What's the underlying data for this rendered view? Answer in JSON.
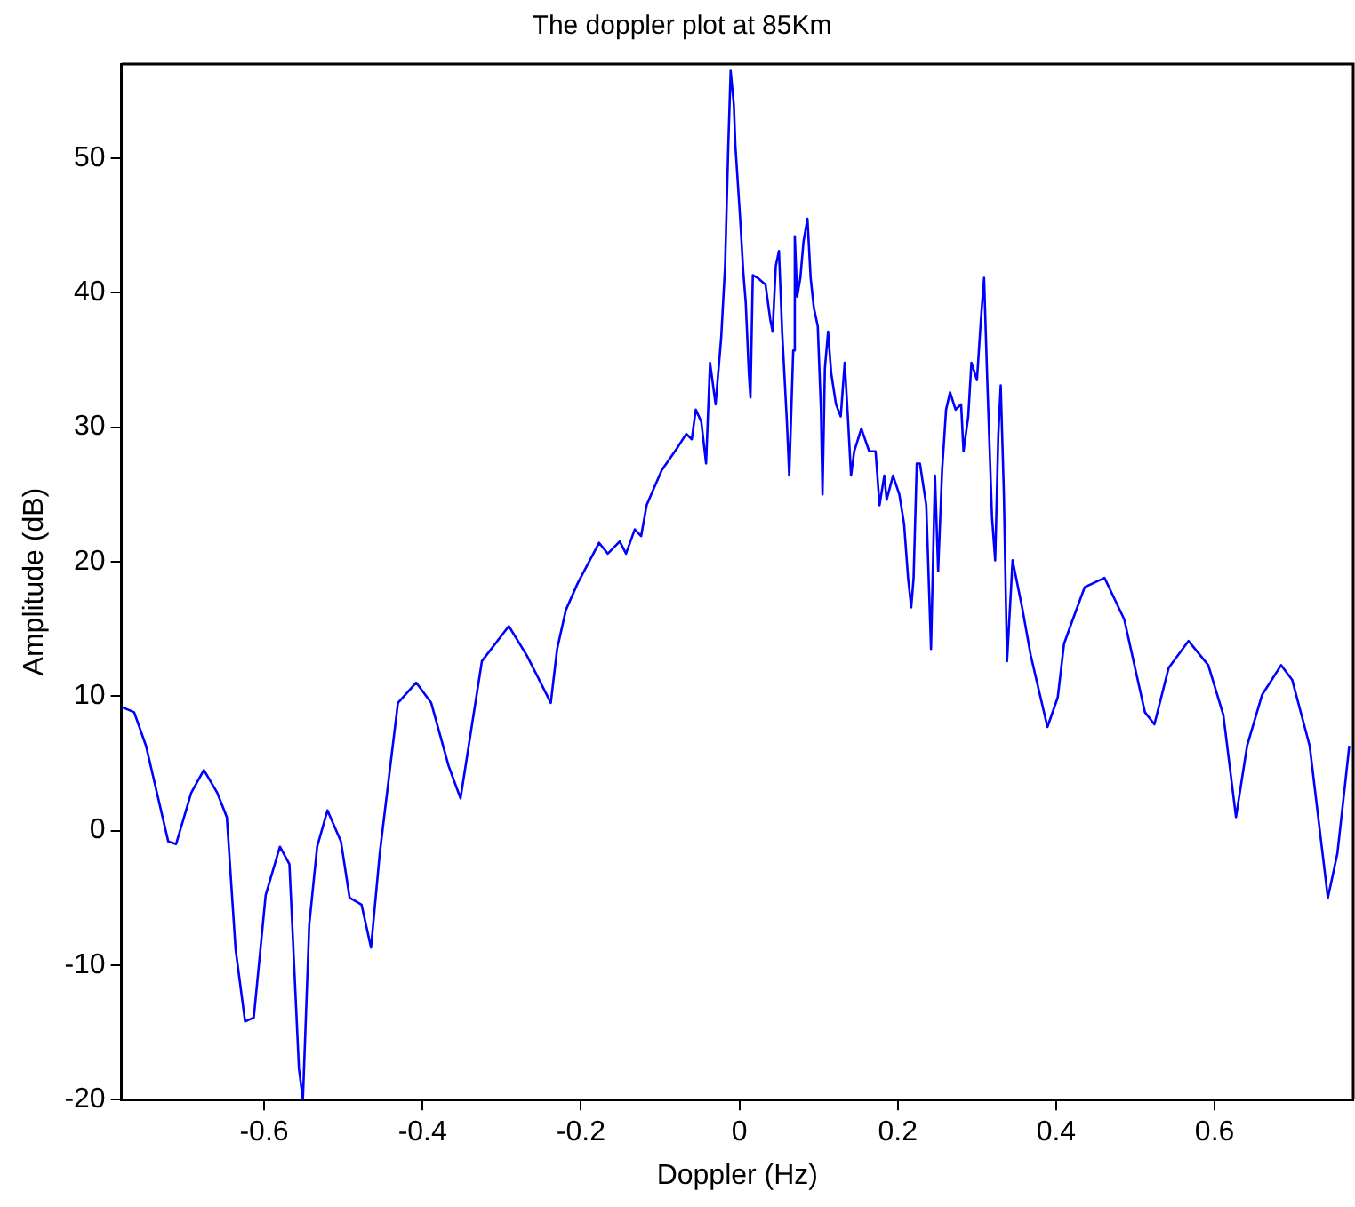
{
  "chart_data": {
    "type": "line",
    "title": "The doppler plot at 85Km",
    "xlabel": "Doppler (Hz)",
    "ylabel": "Amplitude (dB)",
    "xlim": [
      -0.78,
      0.775
    ],
    "ylim": [
      -20,
      57
    ],
    "xticks": [
      -0.6,
      -0.4,
      -0.2,
      0,
      0.2,
      0.4,
      0.6
    ],
    "yticks": [
      -20,
      -10,
      0,
      10,
      20,
      30,
      40,
      50
    ],
    "grid": false,
    "legend": false,
    "marker": "none",
    "line_style": "solid",
    "series": [
      {
        "color": "#0000ff",
        "x": [
          -0.78,
          -0.764,
          -0.749,
          -0.721,
          -0.711,
          -0.692,
          -0.676,
          -0.659,
          -0.647,
          -0.636,
          -0.624,
          -0.613,
          -0.598,
          -0.58,
          -0.568,
          -0.556,
          -0.551,
          -0.543,
          -0.533,
          -0.52,
          -0.503,
          -0.492,
          -0.477,
          -0.465,
          -0.454,
          -0.431,
          -0.408,
          -0.389,
          -0.367,
          -0.352,
          -0.325,
          -0.291,
          -0.268,
          -0.238,
          -0.23,
          -0.219,
          -0.204,
          -0.177,
          -0.166,
          -0.151,
          -0.143,
          -0.132,
          -0.124,
          -0.117,
          -0.098,
          -0.079,
          -0.067,
          -0.06,
          -0.055,
          -0.048,
          -0.042,
          -0.037,
          -0.03,
          -0.023,
          -0.018,
          -0.014,
          -0.011,
          -0.007,
          -0.005,
          0.001,
          0.005,
          0.008,
          0.012,
          0.014,
          0.017,
          0.023,
          0.033,
          0.039,
          0.042,
          0.046,
          0.05,
          0.054,
          0.06,
          0.063,
          0.068,
          0.07,
          0.073,
          0.077,
          0.081,
          0.086,
          0.09,
          0.094,
          0.099,
          0.103,
          0.105,
          0.108,
          0.112,
          0.116,
          0.122,
          0.128,
          0.133,
          0.137,
          0.141,
          0.145,
          0.154,
          0.164,
          0.172,
          0.177,
          0.183,
          0.186,
          0.194,
          0.202,
          0.208,
          0.213,
          0.217,
          0.22,
          0.224,
          0.228,
          0.236,
          0.242,
          0.247,
          0.251,
          0.256,
          0.261,
          0.266,
          0.273,
          0.28,
          0.283,
          0.289,
          0.293,
          0.3,
          0.305,
          0.309,
          0.313,
          0.319,
          0.323,
          0.327,
          0.33,
          0.334,
          0.338,
          0.345,
          0.357,
          0.368,
          0.389,
          0.402,
          0.41,
          0.421,
          0.436,
          0.461,
          0.486,
          0.512,
          0.524,
          0.542,
          0.567,
          0.592,
          0.611,
          0.627,
          0.641,
          0.66,
          0.684,
          0.698,
          0.72,
          0.743,
          0.755,
          0.765,
          0.77
        ],
        "values": [
          9.2,
          8.8,
          6.3,
          -0.8,
          -1.0,
          2.8,
          4.5,
          2.8,
          1.0,
          -8.8,
          -14.2,
          -13.9,
          -4.8,
          -1.2,
          -2.5,
          -17.7,
          -20,
          -7.0,
          -1.2,
          1.5,
          -0.8,
          -5.0,
          -5.5,
          -8.7,
          -1.7,
          9.5,
          11.0,
          9.5,
          4.8,
          2.4,
          12.6,
          15.2,
          13.0,
          9.5,
          13.5,
          16.4,
          18.4,
          21.4,
          20.6,
          21.5,
          20.6,
          22.4,
          21.9,
          24.2,
          26.8,
          28.4,
          29.5,
          29.1,
          31.3,
          30.4,
          27.3,
          34.8,
          31.7,
          36.6,
          42.0,
          50.9,
          56.5,
          54.0,
          50.9,
          45.5,
          41.5,
          39.3,
          34.0,
          32.2,
          41.3,
          41.1,
          40.6,
          38.0,
          37.1,
          42.0,
          43.1,
          37.1,
          30.4,
          26.4,
          35.7,
          44.2,
          39.7,
          41.1,
          43.8,
          45.5,
          41.1,
          38.9,
          37.5,
          31.3,
          25.0,
          34.4,
          37.1,
          34.0,
          31.7,
          30.8,
          34.8,
          30.8,
          26.4,
          28.2,
          29.9,
          28.2,
          28.2,
          24.2,
          26.4,
          24.6,
          26.4,
          25.0,
          22.8,
          18.8,
          16.6,
          18.8,
          27.3,
          27.3,
          24.2,
          13.5,
          26.4,
          19.3,
          26.8,
          31.3,
          32.6,
          31.3,
          31.7,
          28.2,
          30.8,
          34.8,
          33.5,
          38.0,
          41.1,
          33.5,
          23.3,
          20.1,
          29.5,
          33.1,
          25.0,
          12.6,
          20.1,
          16.6,
          13.0,
          7.7,
          9.9,
          13.9,
          15.7,
          18.1,
          18.8,
          15.7,
          8.8,
          7.9,
          12.1,
          14.1,
          12.3,
          8.6,
          1.0,
          6.3,
          10.1,
          12.3,
          11.2,
          6.3,
          -5.0,
          -1.7,
          3.6,
          6.3
        ]
      }
    ]
  }
}
